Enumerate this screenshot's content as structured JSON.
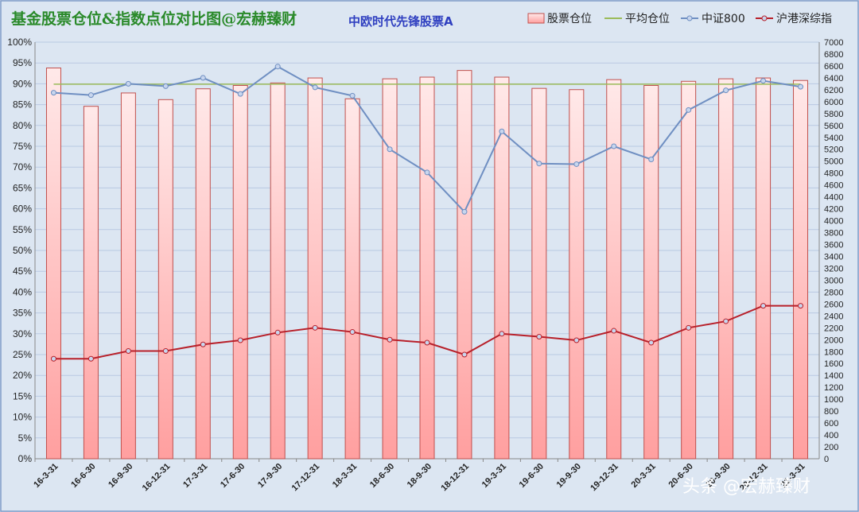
{
  "chart_data": {
    "type": "bar+line",
    "title": "基金股票仓位&指数点位对比图@宏赫臻财",
    "subtitle": "中欧时代先锋股票A",
    "categories": [
      "16-3-31",
      "16-6-30",
      "16-9-30",
      "16-12-31",
      "17-3-31",
      "17-6-30",
      "17-9-30",
      "17-12-31",
      "18-3-31",
      "18-6-30",
      "18-9-30",
      "18-12-31",
      "19-3-31",
      "19-6-30",
      "19-9-30",
      "19-12-31",
      "20-3-31",
      "20-6-30",
      "20-9-30",
      "20-12-31",
      "21-3-31"
    ],
    "y_left": {
      "min": 0,
      "max": 100,
      "step": 5,
      "unit": "%"
    },
    "y_right": {
      "min": 0,
      "max": 7000,
      "step": 200
    },
    "series": [
      {
        "name": "股票仓位",
        "kind": "bar",
        "axis": "left",
        "values": [
          93.8,
          84.6,
          87.8,
          86.2,
          88.8,
          89.6,
          90.2,
          91.4,
          86.4,
          91.2,
          91.6,
          93.2,
          91.6,
          88.9,
          88.6,
          91.0,
          89.6,
          90.6,
          91.2,
          91.4,
          90.8
        ]
      },
      {
        "name": "平均仓位",
        "kind": "line",
        "axis": "left",
        "values": [
          89.9,
          89.9,
          89.9,
          89.9,
          89.9,
          89.9,
          89.9,
          89.9,
          89.9,
          89.9,
          89.9,
          89.9,
          89.9,
          89.9,
          89.9,
          89.9,
          89.9,
          89.9,
          89.9,
          89.9,
          89.9
        ]
      },
      {
        "name": "中证800",
        "kind": "line",
        "axis": "right",
        "values": [
          6150,
          6110,
          6300,
          6260,
          6400,
          6130,
          6590,
          6240,
          6100,
          5200,
          4810,
          4150,
          5500,
          4960,
          4950,
          5250,
          5030,
          5860,
          6190,
          6350,
          6250
        ]
      },
      {
        "name": "沪港深综指",
        "kind": "line",
        "axis": "right",
        "values": [
          1680,
          1680,
          1810,
          1810,
          1920,
          1990,
          2120,
          2200,
          2130,
          2000,
          1950,
          1750,
          2100,
          2050,
          1990,
          2150,
          1950,
          2200,
          2310,
          2570,
          2570
        ]
      }
    ],
    "colors": {
      "bar_fill_top": "#ffe8e8",
      "bar_fill_bottom": "#ff9c9c",
      "bar_stroke": "#c0504d",
      "avg": "#9bbb59",
      "csi800": "#6f8fc2",
      "hk": "#b8202a"
    },
    "watermark": "头条 @宏赫臻财"
  }
}
